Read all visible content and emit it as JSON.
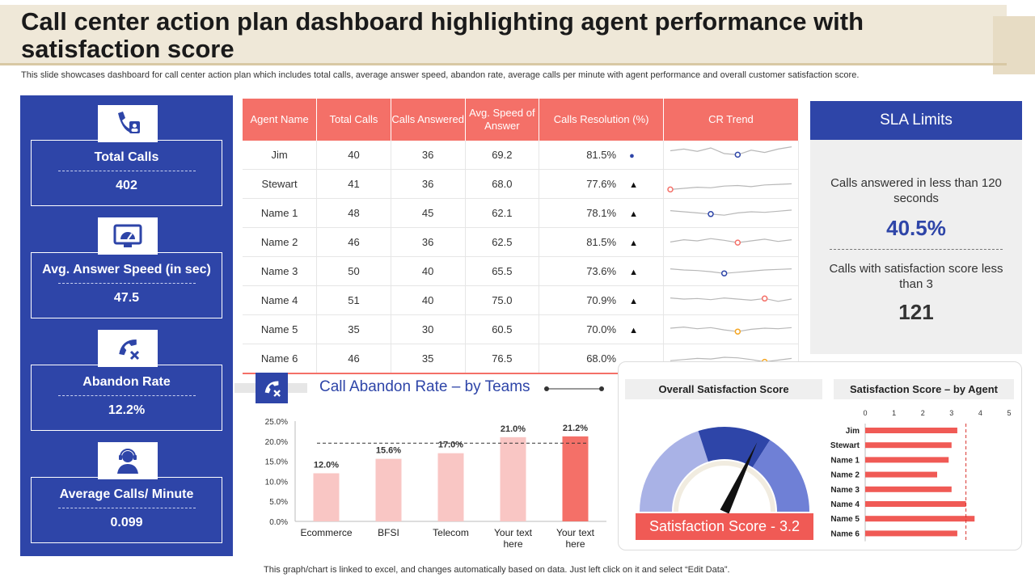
{
  "header": {
    "title": "Call center action plan dashboard highlighting agent performance with satisfaction score",
    "subtitle": "This slide showcases dashboard for call center action plan which includes total calls, average answer speed, abandon rate, average calls per minute with agent performance and overall customer satisfaction score."
  },
  "kpis": [
    {
      "label": "Total Calls",
      "value": "402",
      "icon": "phone-user-icon"
    },
    {
      "label": "Avg. Answer Speed (in sec)",
      "value": "47.5",
      "icon": "speedometer-monitor-icon"
    },
    {
      "label": "Abandon Rate",
      "value": "12.2%",
      "icon": "phone-cancel-icon"
    },
    {
      "label": "Average Calls/ Minute",
      "value": "0.099",
      "icon": "headset-agent-icon"
    }
  ],
  "table": {
    "headers": [
      "Agent Name",
      "Total Calls",
      "Calls Answered",
      "Avg. Speed of Answer",
      "Calls Resolution (%)",
      "CR Trend"
    ],
    "rows": [
      {
        "name": "Jim",
        "total": "40",
        "answered": "36",
        "speed": "69.2",
        "resolution": "81.5%",
        "indicator": "●"
      },
      {
        "name": "Stewart",
        "total": "41",
        "answered": "36",
        "speed": "68.0",
        "resolution": "77.6%",
        "indicator": "▲"
      },
      {
        "name": "Name 1",
        "total": "48",
        "answered": "45",
        "speed": "62.1",
        "resolution": "78.1%",
        "indicator": "▲"
      },
      {
        "name": "Name 2",
        "total": "46",
        "answered": "36",
        "speed": "62.5",
        "resolution": "81.5%",
        "indicator": "▲"
      },
      {
        "name": "Name 3",
        "total": "50",
        "answered": "40",
        "speed": "65.5",
        "resolution": "73.6%",
        "indicator": "▲"
      },
      {
        "name": "Name 4",
        "total": "51",
        "answered": "40",
        "speed": "75.0",
        "resolution": "70.9%",
        "indicator": "▲"
      },
      {
        "name": "Name 5",
        "total": "35",
        "answered": "30",
        "speed": "60.5",
        "resolution": "70.0%",
        "indicator": "▲"
      },
      {
        "name": "Name 6",
        "total": "46",
        "answered": "35",
        "speed": "76.5",
        "resolution": "68.0%",
        "indicator": ""
      }
    ]
  },
  "sla": {
    "title": "SLA Limits",
    "label1": "Calls answered in less than 120 seconds",
    "value1": "40.5%",
    "label2": "Calls with satisfaction score less than 3",
    "value2": "121"
  },
  "abandon": {
    "title": "Call Abandon Rate – by Teams"
  },
  "satisfaction": {
    "overall_title": "Overall Satisfaction Score",
    "agent_title": "Satisfaction Score – by Agent",
    "score_label": "Satisfaction Score - 3.2"
  },
  "footer": "This graph/chart is linked to excel, and changes automatically based on data. Just left click on it and select “Edit Data”.",
  "chart_data": [
    {
      "type": "bar",
      "title": "Call Abandon Rate – by Teams",
      "categories": [
        "Ecommerce",
        "BFSI",
        "Telecom",
        "Your text here",
        "Your text here"
      ],
      "values": [
        12.0,
        15.6,
        17.0,
        21.0,
        21.2
      ],
      "data_labels": [
        "12.0%",
        "15.6%",
        "17.0%",
        "21.0%",
        "21.2%"
      ],
      "yticks": [
        "0.0%",
        "5.0%",
        "10.0%",
        "15.0%",
        "20.0%",
        "25.0%"
      ],
      "ylim": [
        0,
        25
      ],
      "reference_line": 19.5,
      "colors": [
        "#f9c6c4",
        "#f9c6c4",
        "#f9c6c4",
        "#f9c6c4",
        "#f47068"
      ]
    },
    {
      "type": "bar",
      "orientation": "horizontal",
      "title": "Satisfaction Score – by Agent",
      "categories": [
        "Jim",
        "Stewart",
        "Name 1",
        "Name 2",
        "Name 3",
        "Name 4",
        "Name 5",
        "Name 6"
      ],
      "values": [
        3.2,
        3.0,
        2.9,
        2.5,
        3.0,
        3.5,
        3.8,
        3.2
      ],
      "xticks": [
        "0",
        "1",
        "2",
        "3",
        "4",
        "5"
      ],
      "xlim": [
        0,
        5
      ],
      "reference_line": 3.5,
      "color": "#f05a55"
    },
    {
      "type": "line",
      "title": "CR Trend",
      "series": [
        {
          "name": "Jim",
          "values": [
            55,
            58,
            54,
            60,
            50,
            48,
            56,
            52,
            58,
            62
          ],
          "marker_index": 5,
          "marker_color": "#2e45a8"
        },
        {
          "name": "Stewart",
          "values": [
            38,
            40,
            42,
            41,
            44,
            45,
            43,
            46,
            47,
            48
          ],
          "marker_index": 0,
          "marker_color": "#f47068"
        },
        {
          "name": "Name 1",
          "values": [
            52,
            50,
            48,
            46,
            44,
            48,
            50,
            49,
            51,
            53
          ],
          "marker_index": 3,
          "marker_color": "#2e45a8"
        },
        {
          "name": "Name 2",
          "values": [
            48,
            52,
            50,
            54,
            51,
            47,
            50,
            53,
            49,
            52
          ],
          "marker_index": 5,
          "marker_color": "#f47068"
        },
        {
          "name": "Name 3",
          "values": [
            52,
            50,
            49,
            47,
            44,
            46,
            48,
            50,
            51,
            52
          ],
          "marker_index": 4,
          "marker_color": "#2e45a8"
        },
        {
          "name": "Name 4",
          "values": [
            52,
            50,
            51,
            49,
            52,
            50,
            48,
            51,
            46,
            50
          ],
          "marker_index": 7,
          "marker_color": "#f47068"
        },
        {
          "name": "Name 5",
          "values": [
            50,
            52,
            49,
            51,
            47,
            44,
            48,
            50,
            49,
            51
          ],
          "marker_index": 5,
          "marker_color": "#f5a623"
        },
        {
          "name": "Name 6",
          "values": [
            44,
            46,
            48,
            47,
            50,
            49,
            46,
            42,
            45,
            48
          ],
          "marker_index": 7,
          "marker_color": "#f5a623"
        }
      ]
    },
    {
      "type": "gauge",
      "title": "Overall Satisfaction Score",
      "value": 3.2,
      "max": 5,
      "segments": [
        {
          "from": 0,
          "to": 2,
          "color": "#a9b2e6"
        },
        {
          "from": 2,
          "to": 3.4,
          "color": "#2e45a8"
        },
        {
          "from": 3.4,
          "to": 5,
          "color": "#6f80d6"
        }
      ]
    }
  ]
}
